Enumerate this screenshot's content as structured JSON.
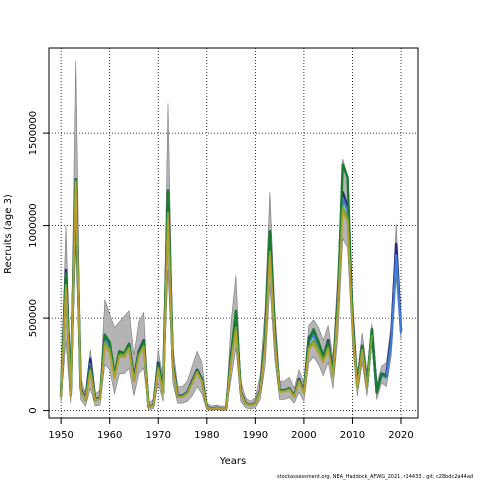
{
  "chart_data": {
    "type": "line",
    "title": "",
    "xlabel": "Years",
    "ylabel": "Recruits (age 3)",
    "xlim": [
      1947.5,
      2023.5
    ],
    "ylim": [
      -40000,
      1960000
    ],
    "xticks": [
      1950,
      1960,
      1970,
      1980,
      1990,
      2000,
      2010,
      2020
    ],
    "yticks": [
      0,
      500000,
      1000000,
      1500000
    ],
    "grid": true,
    "footer": "stockassessment.org, NEA_Haddock_AFWG_2021, r14433 , git: c28bdc2a44ad",
    "colors": {
      "band": "#b4b4b4",
      "band_edge": "#7a7a7a",
      "series": [
        "#2a2a7e",
        "#3f7ed6",
        "#1a7a2e",
        "#6fa93a",
        "#b8a030"
      ]
    },
    "x": [
      1950,
      1951,
      1952,
      1953,
      1954,
      1955,
      1956,
      1957,
      1958,
      1959,
      1960,
      1961,
      1962,
      1963,
      1964,
      1965,
      1966,
      1967,
      1968,
      1969,
      1970,
      1971,
      1972,
      1973,
      1974,
      1975,
      1976,
      1977,
      1978,
      1979,
      1980,
      1981,
      1982,
      1983,
      1984,
      1985,
      1986,
      1987,
      1988,
      1989,
      1990,
      1991,
      1992,
      1993,
      1994,
      1995,
      1996,
      1997,
      1998,
      1999,
      2000,
      2001,
      2002,
      2003,
      2004,
      2005,
      2006,
      2007,
      2008,
      2009,
      2010,
      2011,
      2012,
      2013,
      2014,
      2015,
      2016,
      2017,
      2018,
      2019,
      2020
    ],
    "series": [
      {
        "values": [
          80000,
          760000,
          90000,
          1250000,
          120000,
          60000,
          280000,
          60000,
          70000,
          410000,
          360000,
          190000,
          320000,
          310000,
          360000,
          170000,
          320000,
          380000,
          20000,
          30000,
          260000,
          100000,
          1180000,
          250000,
          80000,
          80000,
          100000,
          160000,
          220000,
          170000,
          20000,
          10000,
          15000,
          10000,
          10000,
          300000,
          510000,
          100000,
          40000,
          30000,
          40000,
          110000,
          390000,
          960000,
          420000,
          110000,
          110000,
          120000,
          80000,
          170000,
          100000,
          390000,
          430000,
          370000,
          290000,
          380000,
          200000,
          600000,
          1180000,
          1100000,
          500000,
          130000,
          350000,
          130000,
          440000,
          100000,
          200000,
          190000,
          400000,
          900000,
          430000
        ]
      },
      {
        "values": [
          70000,
          700000,
          80000,
          1230000,
          110000,
          55000,
          250000,
          55000,
          65000,
          390000,
          340000,
          180000,
          300000,
          290000,
          340000,
          160000,
          300000,
          360000,
          20000,
          28000,
          240000,
          95000,
          1150000,
          240000,
          75000,
          75000,
          95000,
          150000,
          210000,
          160000,
          18000,
          9000,
          14000,
          9000,
          9000,
          280000,
          480000,
          95000,
          38000,
          28000,
          38000,
          105000,
          370000,
          930000,
          400000,
          105000,
          105000,
          115000,
          75000,
          160000,
          95000,
          370000,
          410000,
          350000,
          280000,
          360000,
          190000,
          570000,
          1150000,
          1080000,
          490000,
          125000,
          340000,
          125000,
          420000,
          95000,
          190000,
          180000,
          370000,
          840000,
          420000
        ]
      },
      {
        "values": [
          75000,
          740000,
          85000,
          1250000,
          115000,
          58000,
          240000,
          58000,
          68000,
          410000,
          370000,
          185000,
          320000,
          310000,
          360000,
          165000,
          310000,
          375000,
          20000,
          29000,
          245000,
          98000,
          1190000,
          245000,
          78000,
          78000,
          98000,
          155000,
          215000,
          165000,
          19000,
          9500,
          14500,
          9500,
          9500,
          290000,
          540000,
          98000,
          39000,
          29000,
          39000,
          108000,
          380000,
          970000,
          410000,
          108000,
          108000,
          118000,
          78000,
          165000,
          98000,
          380000,
          440000,
          370000,
          290000,
          370000,
          195000,
          590000,
          1330000,
          1260000,
          480000,
          128000,
          350000,
          128000,
          440000,
          98000,
          200000,
          185000,
          0,
          0,
          0
        ]
      },
      {
        "values": [
          72000,
          680000,
          80000,
          1240000,
          110000,
          56000,
          220000,
          56000,
          66000,
          370000,
          330000,
          180000,
          300000,
          300000,
          340000,
          160000,
          300000,
          350000,
          19000,
          28000,
          230000,
          95000,
          1070000,
          235000,
          75000,
          75000,
          95000,
          150000,
          210000,
          160000,
          18000,
          9000,
          14000,
          9000,
          9000,
          270000,
          450000,
          95000,
          38000,
          28000,
          38000,
          105000,
          350000,
          860000,
          390000,
          105000,
          105000,
          115000,
          75000,
          160000,
          95000,
          340000,
          380000,
          330000,
          270000,
          340000,
          185000,
          560000,
          1100000,
          1040000,
          460000,
          125000,
          330000,
          125000,
          410000,
          0,
          0,
          0,
          0,
          0,
          0
        ]
      },
      {
        "values": [
          70000,
          660000,
          78000,
          1230000,
          108000,
          55000,
          210000,
          55000,
          65000,
          350000,
          310000,
          170000,
          290000,
          290000,
          330000,
          155000,
          290000,
          340000,
          18000,
          27000,
          220000,
          92000,
          1040000,
          230000,
          73000,
          73000,
          93000,
          145000,
          205000,
          155000,
          17000,
          8500,
          13500,
          8500,
          8500,
          260000,
          430000,
          92000,
          37000,
          27000,
          37000,
          102000,
          340000,
          840000,
          380000,
          102000,
          102000,
          112000,
          73000,
          155000,
          92000,
          330000,
          360000,
          310000,
          260000,
          330000,
          180000,
          540000,
          1080000,
          1020000,
          450000,
          122000,
          320000,
          122000,
          0,
          0,
          0,
          0,
          0,
          0,
          0
        ]
      }
    ],
    "band_upper": [
      120000,
      1000000,
      150000,
      1890000,
      180000,
      90000,
      330000,
      90000,
      110000,
      600000,
      520000,
      450000,
      480000,
      510000,
      540000,
      300000,
      480000,
      530000,
      40000,
      60000,
      330000,
      170000,
      1660000,
      350000,
      130000,
      130000,
      160000,
      240000,
      320000,
      260000,
      40000,
      25000,
      30000,
      25000,
      25000,
      480000,
      730000,
      160000,
      70000,
      50000,
      70000,
      190000,
      550000,
      1180000,
      550000,
      160000,
      160000,
      180000,
      120000,
      220000,
      150000,
      460000,
      490000,
      450000,
      380000,
      460000,
      280000,
      750000,
      1360000,
      1270000,
      620000,
      200000,
      420000,
      210000,
      470000,
      140000,
      240000,
      260000,
      470000,
      1010000,
      480000
    ],
    "band_lower": [
      40000,
      380000,
      40000,
      900000,
      60000,
      25000,
      120000,
      25000,
      30000,
      250000,
      220000,
      90000,
      200000,
      200000,
      230000,
      80000,
      200000,
      230000,
      5000,
      10000,
      150000,
      50000,
      760000,
      150000,
      40000,
      40000,
      50000,
      80000,
      130000,
      90000,
      5000,
      2000,
      5000,
      2000,
      2000,
      170000,
      340000,
      50000,
      15000,
      10000,
      15000,
      60000,
      240000,
      680000,
      280000,
      60000,
      60000,
      70000,
      40000,
      100000,
      50000,
      260000,
      290000,
      250000,
      190000,
      260000,
      120000,
      400000,
      930000,
      880000,
      360000,
      80000,
      260000,
      80000,
      360000,
      60000,
      150000,
      130000,
      300000,
      720000,
      380000
    ]
  }
}
